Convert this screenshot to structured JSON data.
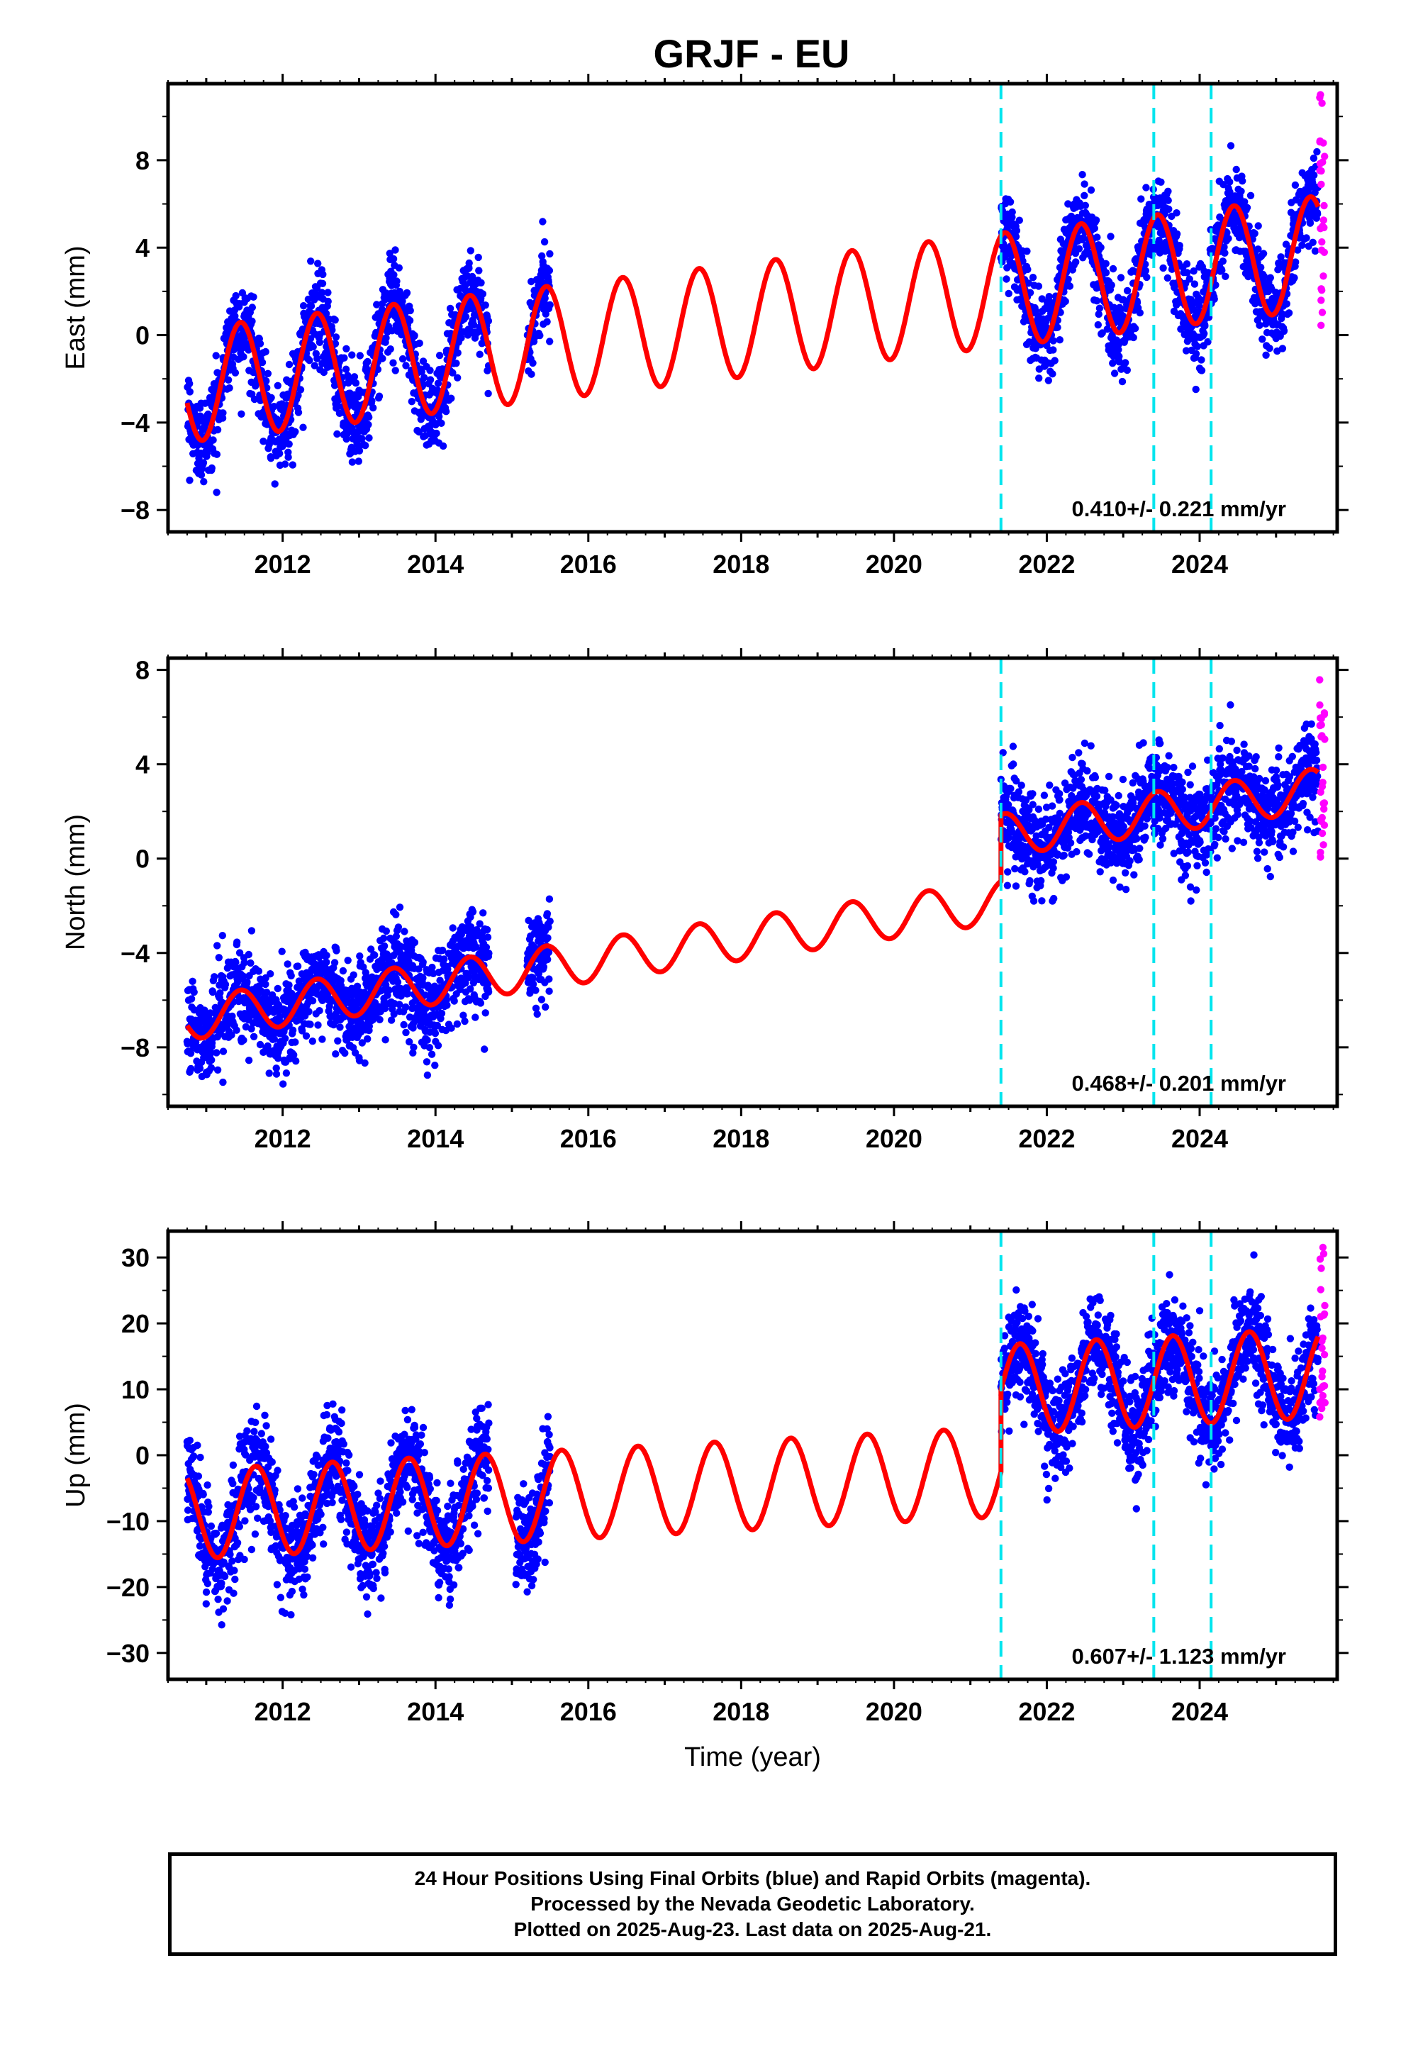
{
  "title": "GRJF - EU",
  "chart_data": [
    {
      "type": "scatter",
      "ylabel": "East (mm)",
      "xlabel": "",
      "xlim": [
        2010.5,
        2025.8
      ],
      "ylim": [
        -9,
        11.5
      ],
      "xticks": [
        "2012",
        "2014",
        "2016",
        "2018",
        "2020",
        "2022",
        "2024"
      ],
      "yticks": [
        "-8",
        "-4",
        "0",
        "4",
        "8"
      ],
      "rate_label": "0.410+/- 0.221 mm/yr",
      "steps": [
        2021.4,
        2023.4,
        2024.15
      ],
      "colors": {
        "final": "#0000ff",
        "rapid": "#ff00ff",
        "model": "#ff0000",
        "steps": "#00e5ee"
      },
      "data_segments": [
        [
          2010.75,
          2014.7
        ],
        [
          2015.2,
          2015.5
        ],
        [
          2021.4,
          2025.55
        ]
      ],
      "model": {
        "start": 2010.75,
        "end": 2025.55,
        "base": -2.3,
        "rate": 0.41,
        "amp": 2.6,
        "peak": 2011.45,
        "jumps": []
      },
      "noise": 1.0,
      "rapid_range": [
        0.0,
        11.0
      ],
      "series": [
        {
          "name": "Final Orbits",
          "color": "#0000ff"
        },
        {
          "name": "Rapid Orbits",
          "color": "#ff00ff"
        },
        {
          "name": "Model fit",
          "color": "#ff0000"
        }
      ]
    },
    {
      "type": "scatter",
      "ylabel": "North (mm)",
      "xlabel": "",
      "xlim": [
        2010.5,
        2025.8
      ],
      "ylim": [
        -10.5,
        8.5
      ],
      "xticks": [
        "2012",
        "2014",
        "2016",
        "2018",
        "2020",
        "2022",
        "2024"
      ],
      "yticks": [
        "-8",
        "-4",
        "0",
        "4",
        "8"
      ],
      "rate_label": "0.468+/- 0.201 mm/yr",
      "steps": [
        2021.4,
        2023.4,
        2024.15
      ],
      "colors": {
        "final": "#0000ff",
        "rapid": "#ff00ff",
        "model": "#ff0000",
        "steps": "#00e5ee"
      },
      "data_segments": [
        [
          2010.75,
          2014.7
        ],
        [
          2015.2,
          2015.5
        ],
        [
          2021.4,
          2025.55
        ]
      ],
      "model": {
        "start": 2010.75,
        "end": 2025.55,
        "base": -6.8,
        "rate": 0.468,
        "amp": 0.9,
        "peak": 2011.45,
        "jumps": [
          [
            2021.4,
            2.8
          ]
        ]
      },
      "noise": 1.0,
      "rapid_range": [
        0.0,
        8.0
      ],
      "series": [
        {
          "name": "Final Orbits",
          "color": "#0000ff"
        },
        {
          "name": "Rapid Orbits",
          "color": "#ff00ff"
        },
        {
          "name": "Model fit",
          "color": "#ff0000"
        }
      ]
    },
    {
      "type": "scatter",
      "ylabel": "Up (mm)",
      "xlabel": "Time (year)",
      "xlim": [
        2010.5,
        2025.8
      ],
      "ylim": [
        -34,
        34
      ],
      "xticks": [
        "2012",
        "2014",
        "2016",
        "2018",
        "2020",
        "2022",
        "2024"
      ],
      "yticks": [
        "-30",
        "-20",
        "-10",
        "0",
        "10",
        "20",
        "30"
      ],
      "rate_label": "0.607+/- 1.123 mm/yr",
      "steps": [
        2021.4,
        2023.4,
        2024.15
      ],
      "colors": {
        "final": "#0000ff",
        "rapid": "#ff00ff",
        "model": "#ff0000",
        "steps": "#00e5ee"
      },
      "data_segments": [
        [
          2010.75,
          2014.7
        ],
        [
          2015.05,
          2015.5
        ],
        [
          2021.4,
          2025.55
        ]
      ],
      "model": {
        "start": 2010.75,
        "end": 2025.55,
        "base": -9.0,
        "rate": 0.607,
        "amp": 6.8,
        "peak": 2011.65,
        "jumps": [
          [
            2021.4,
            12.5
          ]
        ]
      },
      "noise": 3.8,
      "rapid_range": [
        5.0,
        33.0
      ],
      "series": [
        {
          "name": "Final Orbits",
          "color": "#0000ff"
        },
        {
          "name": "Rapid Orbits",
          "color": "#ff00ff"
        },
        {
          "name": "Model fit",
          "color": "#ff0000"
        }
      ]
    }
  ],
  "caption": {
    "line1": "24 Hour Positions Using Final Orbits (blue) and Rapid Orbits (magenta).",
    "line2": "Processed by the Nevada Geodetic Laboratory.",
    "line3": "Plotted on 2025-Aug-23. Last data on 2025-Aug-21."
  }
}
